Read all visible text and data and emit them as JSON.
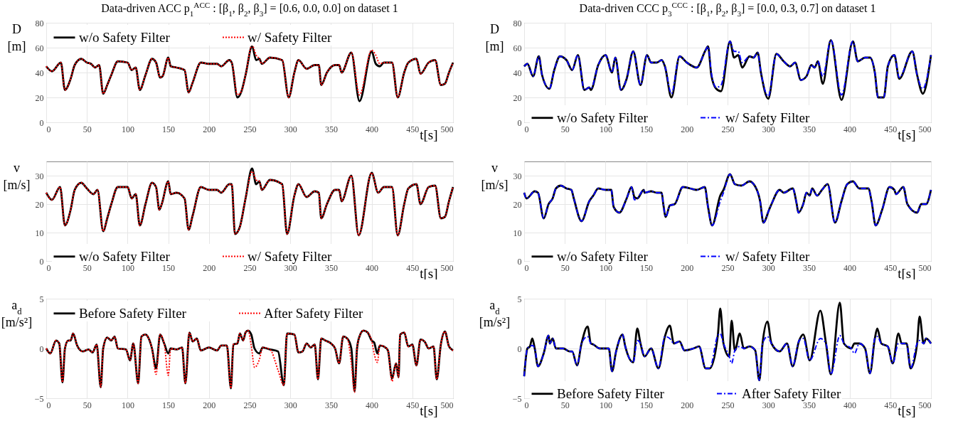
{
  "chart_data": [
    {
      "type": "line",
      "title": "Data-driven ACC p$_{1}$$^{ACC}$ : [β$_{1}$, β$_{2}$, β$_{3}$] = [0.6, 0.0, 0.0] on dataset 1",
      "xlabel": "t[s]",
      "ylabel": "D [m]",
      "xlim": [
        0,
        500
      ],
      "xticks": [
        0,
        50,
        100,
        150,
        200,
        250,
        300,
        350,
        400,
        450,
        500
      ],
      "ylim": [
        0,
        80
      ],
      "yticks": [
        0,
        20,
        40,
        60,
        80
      ],
      "grid": true,
      "legend": "top",
      "x": [
        0,
        7,
        18,
        23,
        30,
        35,
        43,
        50,
        55,
        60,
        65,
        70,
        75,
        80,
        88,
        100,
        105,
        110,
        115,
        122,
        130,
        135,
        140,
        143,
        150,
        153,
        160,
        170,
        175,
        180,
        190,
        200,
        210,
        215,
        225,
        228,
        235,
        240,
        245,
        253,
        258,
        262,
        265,
        275,
        290,
        298,
        305,
        310,
        320,
        330,
        335,
        338,
        345,
        355,
        360,
        363,
        375,
        385,
        400,
        405,
        410,
        415,
        425,
        432,
        440,
        445,
        455,
        460,
        470,
        478,
        485,
        490,
        495,
        500
      ],
      "series": [
        {
          "name": "w/o Safety Filter",
          "color": "#000000",
          "line_style": "solid",
          "values": [
            45,
            41,
            48,
            26,
            35,
            46,
            51,
            48,
            47,
            44,
            46,
            23,
            30,
            38,
            49,
            48,
            42,
            44,
            26,
            38,
            51,
            48,
            36,
            37,
            52,
            45,
            44,
            42,
            24,
            32,
            48,
            47,
            47,
            45,
            50,
            48,
            20,
            25,
            38,
            61,
            50,
            51,
            47,
            52,
            50,
            20,
            40,
            50,
            43,
            46,
            46,
            30,
            40,
            46,
            46,
            40,
            56,
            17,
            57,
            47,
            45,
            48,
            48,
            20,
            40,
            48,
            51,
            39,
            48,
            50,
            30,
            31,
            40,
            48
          ]
        },
        {
          "name": "w/ Safety Filter",
          "color": "#ff0000",
          "line_style": "dotted",
          "values": [
            45,
            41,
            48,
            26,
            35,
            46,
            51,
            48,
            47,
            44,
            46,
            23,
            30,
            38,
            49,
            48,
            42,
            44,
            26,
            38,
            51,
            48,
            36,
            37,
            52,
            45,
            44,
            42,
            24,
            32,
            48,
            47,
            47,
            45,
            50,
            48,
            22,
            25,
            38,
            62,
            54,
            51,
            47,
            52,
            50,
            20,
            40,
            50,
            43,
            46,
            46,
            30,
            40,
            46,
            46,
            40,
            56,
            22,
            58,
            54,
            47,
            48,
            48,
            20,
            40,
            48,
            51,
            39,
            48,
            50,
            30,
            31,
            40,
            48
          ]
        }
      ]
    },
    {
      "type": "line",
      "title": "Data-driven CCC p$_{3}$$^{CCC}$ : [β$_{1}$, β$_{2}$, β$_{3}$] = [0.0, 0.3, 0.7] on dataset 1",
      "xlabel": "t[s]",
      "ylabel": "D [m]",
      "xlim": [
        0,
        500
      ],
      "xticks": [
        0,
        50,
        100,
        150,
        200,
        250,
        300,
        350,
        400,
        450,
        500
      ],
      "ylim": [
        0,
        80
      ],
      "yticks": [
        0,
        20,
        40,
        60,
        80
      ],
      "grid": true,
      "legend": "bottom",
      "x": [
        0,
        4,
        11,
        18,
        22,
        31,
        37,
        44,
        52,
        59,
        66,
        74,
        80,
        82,
        91,
        100,
        108,
        112,
        119,
        126,
        134,
        143,
        151,
        156,
        163,
        169,
        173,
        181,
        191,
        200,
        212,
        223,
        226,
        230,
        236,
        242,
        253,
        258,
        263,
        268,
        277,
        282,
        287,
        291,
        300,
        310,
        319,
        327,
        333,
        340,
        347,
        353,
        357,
        361,
        367,
        377,
        390,
        404,
        410,
        419,
        425,
        431,
        435,
        442,
        447,
        455,
        461,
        477,
        483,
        490,
        500
      ],
      "series": [
        {
          "name": "w/o Safety Filter",
          "color": "#000000",
          "line_style": "solid",
          "values": [
            45,
            47,
            37,
            53,
            38,
            27,
            42,
            53,
            50,
            42,
            54,
            26,
            28,
            26,
            46,
            54,
            40,
            52,
            26,
            35,
            57,
            30,
            54,
            48,
            48,
            50,
            45,
            20,
            53,
            48,
            44,
            58,
            61,
            38,
            27,
            25,
            65,
            52,
            54,
            44,
            53,
            52,
            56,
            40,
            19,
            55,
            49,
            45,
            48,
            34,
            37,
            46,
            44,
            49,
            31,
            66,
            18,
            65,
            49,
            52,
            52,
            40,
            20,
            20,
            45,
            54,
            35,
            57,
            38,
            23,
            54
          ]
        },
        {
          "name": "w/ Safety Filter",
          "color": "#0000ff",
          "line_style": "dashed",
          "values": [
            45,
            47,
            37,
            53,
            38,
            27,
            42,
            53,
            50,
            42,
            54,
            26,
            28,
            27,
            46,
            54,
            40,
            52,
            26,
            35,
            57,
            30,
            54,
            48,
            48,
            50,
            45,
            23,
            53,
            48,
            44,
            58,
            61,
            40,
            28,
            30,
            65,
            57,
            57,
            48,
            53,
            52,
            56,
            40,
            21,
            55,
            49,
            45,
            48,
            34,
            37,
            46,
            44,
            49,
            37,
            66,
            22,
            65,
            49,
            52,
            52,
            40,
            20,
            20,
            45,
            54,
            36,
            57,
            38,
            27,
            54
          ]
        }
      ]
    },
    {
      "type": "line",
      "xlabel": "t[s]",
      "ylabel": "v [m/s]",
      "xlim": [
        0,
        500
      ],
      "xticks": [
        0,
        50,
        100,
        150,
        200,
        250,
        300,
        350,
        400,
        450,
        500
      ],
      "ylim": [
        0,
        35
      ],
      "yticks": [
        0,
        10,
        20,
        30
      ],
      "grid": true,
      "legend": "bottom",
      "x": [
        0,
        7,
        17,
        23,
        30,
        35,
        43,
        50,
        58,
        63,
        70,
        75,
        80,
        88,
        100,
        105,
        110,
        115,
        122,
        130,
        135,
        139,
        142,
        150,
        153,
        160,
        170,
        175,
        180,
        190,
        200,
        210,
        215,
        225,
        228,
        232,
        238,
        245,
        253,
        258,
        262,
        265,
        275,
        290,
        296,
        305,
        310,
        320,
        330,
        335,
        338,
        345,
        355,
        360,
        363,
        375,
        384,
        400,
        408,
        415,
        425,
        432,
        440,
        445,
        455,
        460,
        470,
        478,
        485,
        490,
        495,
        500
      ],
      "series": [
        {
          "name": "w/o Safety Filter",
          "color": "#000000",
          "line_style": "solid",
          "values": [
            24,
            21.5,
            26,
            12.5,
            18,
            25,
            27.5,
            25.5,
            23.5,
            25,
            10.5,
            15,
            20,
            26,
            26,
            22,
            23.5,
            12.5,
            20,
            27.5,
            26,
            18,
            20,
            28,
            23.5,
            24,
            22,
            11,
            16,
            26,
            25,
            25,
            24,
            27,
            27,
            9.5,
            12,
            22,
            32.5,
            27,
            28,
            25,
            28.5,
            27,
            9.5,
            23,
            27,
            22.5,
            24.5,
            24,
            15,
            20,
            25,
            25,
            21,
            30,
            9,
            31,
            24,
            26,
            26,
            9,
            20,
            25.5,
            27,
            20,
            26,
            26.5,
            15,
            15.5,
            21,
            26
          ]
        },
        {
          "name": "w/ Safety Filter",
          "color": "#ff0000",
          "line_style": "dotted",
          "values": [
            24,
            21.5,
            26,
            12.5,
            18,
            25,
            27.5,
            25.5,
            23.5,
            25,
            10.5,
            15,
            20,
            26,
            26,
            22,
            23.5,
            12.5,
            20,
            27.5,
            26,
            18,
            20,
            28,
            23.5,
            24,
            22,
            11,
            16,
            26,
            25,
            25,
            24,
            27,
            27,
            9.5,
            12,
            22,
            31.5,
            28.5,
            28,
            25,
            28.5,
            27,
            9.5,
            23,
            27,
            22.5,
            24.5,
            24,
            15,
            20,
            25,
            25,
            21,
            30,
            9,
            31,
            24,
            26,
            26,
            9,
            20,
            25.5,
            27,
            20,
            26,
            26.5,
            15,
            15.5,
            21,
            26
          ]
        }
      ]
    },
    {
      "type": "line",
      "xlabel": "t[s]",
      "ylabel": "v [m/s]",
      "xlim": [
        0,
        500
      ],
      "xticks": [
        0,
        50,
        100,
        150,
        200,
        250,
        300,
        350,
        400,
        450,
        500
      ],
      "ylim": [
        0,
        35
      ],
      "yticks": [
        0,
        10,
        20,
        30
      ],
      "grid": true,
      "legend": "bottom",
      "x": [
        0,
        3,
        13,
        17,
        24,
        30,
        35,
        39,
        45,
        52,
        58,
        61,
        70.5,
        80,
        85,
        91,
        100,
        107,
        110,
        117,
        126,
        132,
        135.5,
        139,
        147,
        148,
        156,
        163,
        169,
        171,
        174,
        179,
        185,
        195,
        204,
        212,
        222,
        226,
        231,
        241,
        245,
        253,
        259,
        267,
        277,
        286,
        290,
        294,
        301,
        304,
        314,
        319,
        330,
        335,
        337,
        343,
        347,
        351,
        354,
        360,
        366,
        373,
        382,
        390,
        397,
        404,
        412,
        423,
        427,
        432,
        440,
        449,
        455,
        457,
        466,
        471,
        483,
        488,
        494,
        500
      ],
      "series": [
        {
          "name": "w/o Safety Filter",
          "color": "#000000",
          "line_style": "solid",
          "values": [
            24,
            22,
            24.5,
            24,
            15,
            20,
            22,
            25.5,
            26.5,
            25.5,
            25,
            22,
            14,
            21,
            23,
            25.5,
            25,
            25,
            19,
            17,
            22,
            26,
            22.5,
            22,
            25,
            24,
            24.5,
            24,
            24,
            20,
            15.5,
            19.5,
            20,
            26,
            25.5,
            25,
            26,
            19,
            12.5,
            23,
            25,
            30.5,
            27,
            26.5,
            28,
            25,
            21,
            13.5,
            18,
            20,
            25,
            24,
            25.5,
            20,
            17,
            20,
            24,
            23,
            25.5,
            23,
            25,
            27,
            13.5,
            21,
            27,
            28,
            25.5,
            25.5,
            21,
            12.5,
            18,
            26,
            25,
            23.5,
            26,
            20,
            17,
            20,
            20,
            25
          ]
        },
        {
          "name": "w/ Safety Filter",
          "color": "#0000ff",
          "line_style": "dashed",
          "values": [
            24,
            22,
            24.5,
            24,
            15,
            20,
            22,
            25.5,
            26.5,
            25.5,
            25,
            22,
            14,
            21,
            23,
            25.5,
            25,
            25,
            19,
            17,
            22,
            26,
            21.5,
            22,
            25,
            24,
            24.5,
            24,
            24,
            20,
            15.5,
            19.5,
            20,
            26,
            25.5,
            25,
            26,
            19,
            12.5,
            21,
            24,
            30.5,
            27,
            26.5,
            28,
            25,
            21,
            13.5,
            18,
            20,
            25,
            24,
            25.5,
            20,
            17,
            20,
            24,
            23,
            25.5,
            23,
            25,
            27,
            13.5,
            21,
            27,
            28,
            25.5,
            25.5,
            21,
            12.5,
            18,
            26,
            25,
            23.5,
            26,
            20,
            17,
            20,
            20,
            25
          ]
        }
      ]
    },
    {
      "type": "line",
      "xlabel": "t[s]",
      "ylabel": "a$_{d}$ [m/s²]",
      "xlim": [
        0,
        500
      ],
      "xticks": [
        0,
        50,
        100,
        150,
        200,
        250,
        300,
        350,
        400,
        450,
        500
      ],
      "ylim": [
        -5,
        5
      ],
      "yticks": [
        -5,
        0,
        5
      ],
      "grid": true,
      "legend": "top",
      "x": [
        0,
        5,
        12,
        16,
        20,
        23,
        27,
        30,
        33,
        38,
        45,
        52,
        57,
        62,
        67,
        70,
        75,
        80,
        84,
        88,
        98,
        103,
        107,
        113,
        117,
        122,
        127,
        130,
        135,
        140,
        145,
        150,
        153,
        160,
        167,
        171,
        176,
        180,
        185,
        190,
        200,
        210,
        215,
        222,
        227,
        230,
        235,
        238,
        242,
        245,
        248,
        252,
        256,
        262,
        266,
        275,
        285,
        292,
        296,
        305,
        310,
        315,
        320,
        325,
        330,
        334,
        338,
        343,
        350,
        355,
        360,
        365,
        370,
        375,
        379,
        382,
        385,
        390,
        395,
        400,
        403,
        407,
        410,
        415,
        420,
        425,
        430,
        433,
        435,
        440,
        445,
        450,
        455,
        460,
        465,
        470,
        476,
        480,
        485,
        490,
        495,
        500
      ],
      "series": [
        {
          "name": "Before Safety Filter",
          "color": "#000000",
          "line_style": "solid",
          "values": [
            0,
            -0.5,
            0.8,
            0.5,
            -3.4,
            0,
            0.8,
            0.8,
            1.5,
            0.3,
            -0.3,
            -0.1,
            -0.4,
            0.4,
            -3.9,
            0,
            1.1,
            0.8,
            1.2,
            0,
            -0.1,
            -1.2,
            0.5,
            -3.5,
            1.2,
            1.4,
            0.8,
            0,
            -2,
            1.4,
            0.5,
            -0.5,
            0,
            -0.1,
            0.1,
            -3.5,
            1.6,
            0.7,
            1,
            -0.2,
            0.1,
            -0.2,
            0.3,
            0.3,
            -4,
            0.4,
            0.5,
            1.5,
            0.8,
            1.6,
            1.8,
            1.4,
            0,
            -0.5,
            0.1,
            -0.1,
            -0.3,
            -3.7,
            1.5,
            1.4,
            -0.4,
            -0.3,
            0.5,
            0.1,
            0.4,
            -3.1,
            1,
            0.8,
            0.5,
            0,
            -1.5,
            1.2,
            1,
            0,
            -4.3,
            0,
            1.2,
            1.8,
            1.6,
            0.8,
            0.6,
            -0.5,
            0.3,
            0.2,
            -0.2,
            -3,
            -1.5,
            -2.9,
            1.4,
            1.6,
            0.2,
            0.4,
            -1.7,
            0.9,
            0.7,
            0,
            0.2,
            -3.1,
            0.4,
            1.7,
            0.2,
            -0.2
          ]
        },
        {
          "name": "After Safety Filter",
          "color": "#ff0000",
          "line_style": "dotted",
          "values": [
            0,
            -0.5,
            0.8,
            0.5,
            -3.4,
            0,
            0.8,
            0.8,
            1.5,
            0.3,
            -0.3,
            -0.1,
            -0.4,
            0.4,
            -3.9,
            0,
            1.1,
            0.8,
            1.2,
            0,
            -0.1,
            -1.2,
            0.5,
            -3.5,
            1.2,
            1.4,
            0.8,
            0,
            -2.6,
            1.4,
            0.5,
            -2.7,
            0,
            -0.1,
            0.1,
            -3.5,
            1.6,
            0.7,
            1,
            -0.2,
            0.1,
            -0.2,
            0.3,
            0.3,
            -4,
            0.4,
            0.5,
            1.5,
            0.8,
            1.6,
            1.8,
            0.3,
            -1.9,
            -1.1,
            0.1,
            -0.1,
            -2.2,
            -3.7,
            1.5,
            1.4,
            -0.4,
            -0.3,
            0.5,
            0.1,
            0.4,
            -3.1,
            1,
            0.8,
            0.5,
            0,
            -1.5,
            1.2,
            1,
            -1.5,
            -4.4,
            0,
            1.2,
            1.8,
            1.6,
            0.8,
            -0.5,
            -1.4,
            0.3,
            0.2,
            -0.2,
            -3.3,
            -1.5,
            -2.9,
            1.4,
            1.6,
            0.2,
            0.4,
            -1.7,
            0.9,
            0.7,
            0,
            0.2,
            -3.1,
            0.4,
            1.7,
            0.2,
            -0.2
          ]
        }
      ]
    },
    {
      "type": "line",
      "xlabel": "t[s]",
      "ylabel": "a$_{d}$ [m/s²]",
      "xlim": [
        0,
        500
      ],
      "xticks": [
        0,
        50,
        100,
        150,
        200,
        250,
        300,
        350,
        400,
        450,
        500
      ],
      "ylim": [
        -5,
        5
      ],
      "yticks": [
        -5,
        0,
        5
      ],
      "grid": true,
      "legend": "bottom",
      "x": [
        0,
        4,
        7,
        10,
        13,
        17,
        24,
        30,
        31.5,
        35,
        39,
        48,
        56,
        59,
        65,
        70.5,
        78,
        82,
        85,
        93,
        104,
        108,
        113,
        121,
        124,
        134,
        139,
        143,
        148,
        156,
        165,
        173,
        179,
        184,
        191,
        197,
        208,
        215,
        223,
        228,
        238,
        241,
        245,
        252,
        255,
        259,
        265,
        270,
        277,
        284,
        289,
        293,
        299,
        304,
        314,
        323,
        330,
        338,
        343,
        351,
        364,
        371,
        377,
        388,
        393,
        402,
        406,
        412,
        419,
        425,
        431,
        434,
        439,
        447,
        453,
        460,
        464,
        470,
        475,
        483,
        486,
        491,
        494,
        500
      ],
      "series": [
        {
          "name": "Before Safety Filter",
          "color": "#000000",
          "line_style": "solid",
          "values": [
            -2.8,
            0,
            0.2,
            1,
            0,
            -1.8,
            -0.5,
            1.3,
            0.5,
            1,
            0,
            0,
            -0.3,
            -0.3,
            -1.7,
            0.5,
            2.2,
            0.5,
            0.4,
            0,
            0,
            -2.3,
            -0.3,
            1.4,
            0.3,
            -1.4,
            2,
            0.5,
            -0.8,
            0,
            -2,
            1.2,
            2.3,
            0.5,
            0.7,
            -0.2,
            0,
            0.2,
            -2,
            -2,
            1.3,
            4,
            0.5,
            -0.8,
            2.8,
            -0.2,
            1.5,
            0,
            0.2,
            -0.2,
            -3.2,
            0.5,
            2.7,
            0.5,
            -0.3,
            0.5,
            -1.8,
            0.8,
            1.4,
            -1.2,
            3.8,
            0.5,
            -2.6,
            4.6,
            0.5,
            0,
            0.5,
            0.5,
            0,
            -2.5,
            1,
            2,
            0.5,
            0.2,
            -1.5,
            1.5,
            0.5,
            0.5,
            -2,
            0.5,
            3.2,
            0.5,
            1,
            0.5
          ]
        },
        {
          "name": "After Safety Filter",
          "color": "#0000ff",
          "line_style": "dashed",
          "values": [
            -2.8,
            0,
            0.2,
            0.3,
            0,
            -1.8,
            -0.5,
            1.3,
            0.5,
            1,
            0,
            0,
            -0.3,
            -0.3,
            -1.7,
            0.5,
            1.2,
            0.5,
            0.4,
            0,
            0,
            -2.3,
            -0.3,
            1.4,
            0.3,
            -1.4,
            0.8,
            0.5,
            -0.8,
            0,
            -2,
            1.2,
            1,
            0.5,
            0.7,
            -0.2,
            0,
            0.2,
            -2,
            -2,
            1.3,
            1.5,
            0.5,
            -0.8,
            -1.5,
            -0.2,
            0.2,
            0,
            0.2,
            -0.2,
            -3.2,
            0.5,
            1.2,
            0.5,
            -0.3,
            0.5,
            -1.8,
            0.8,
            1,
            -1.2,
            1,
            0.5,
            -2.6,
            1.3,
            0.5,
            0,
            -0.5,
            0.5,
            0,
            -2.5,
            1,
            1.2,
            0.5,
            0.2,
            -1.5,
            0.5,
            0.5,
            0.5,
            -2,
            0.5,
            0.8,
            0.5,
            1,
            0.5
          ]
        }
      ]
    }
  ]
}
